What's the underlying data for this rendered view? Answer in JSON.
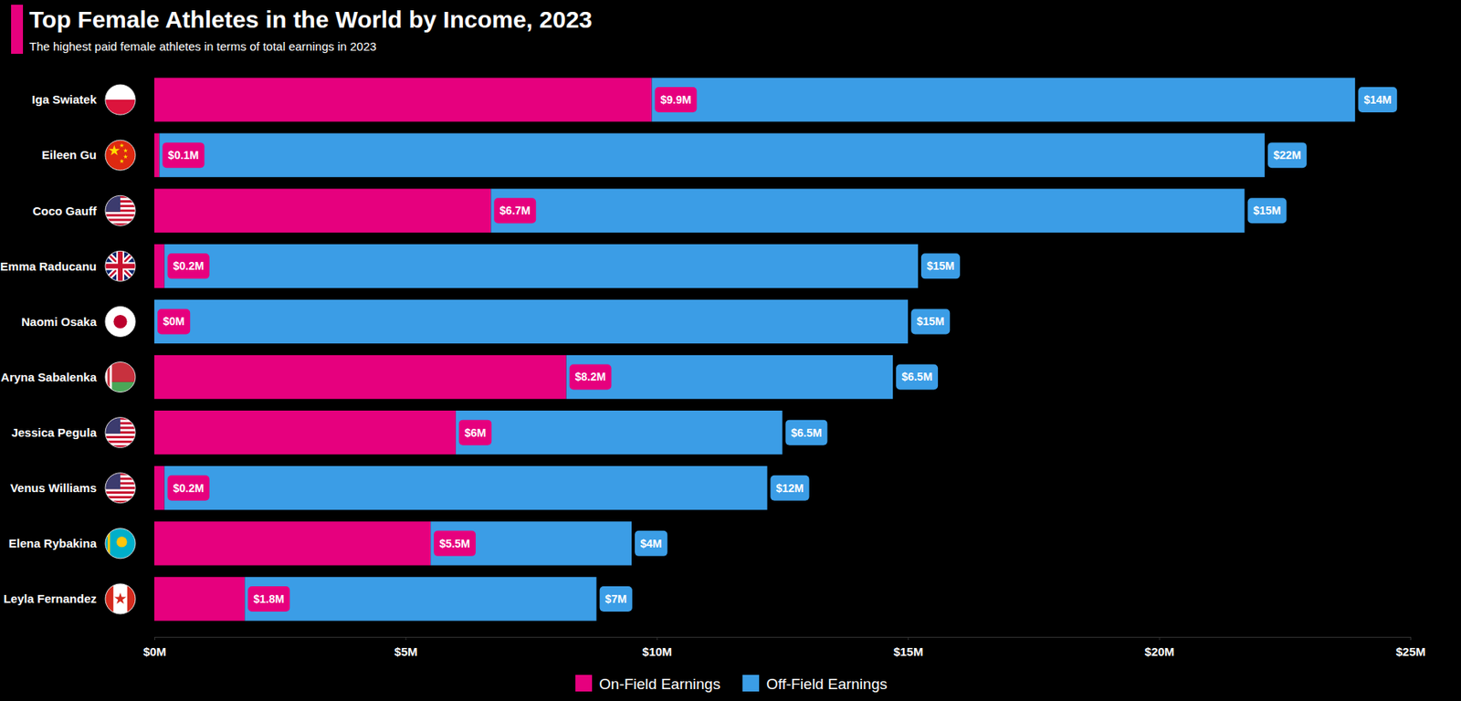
{
  "chart_data": {
    "type": "bar",
    "orientation": "horizontal",
    "stacked": true,
    "data_labels": true,
    "grid": false,
    "legend": "bottom",
    "title": "Top Female Athletes in the World by Income, 2023",
    "subtitle": "The highest paid female athletes in terms of total earnings in 2023",
    "categories": [
      "Iga Swiatek",
      "Eileen Gu",
      "Coco Gauff",
      "Emma Raducanu",
      "Naomi Osaka",
      "Aryna Sabalenka",
      "Jessica Pegula",
      "Venus Williams",
      "Elena Rybakina",
      "Leyla Fernandez"
    ],
    "xlim": [
      0,
      25
    ],
    "xticks": [
      {
        "value": 0,
        "label": "$0M"
      },
      {
        "value": 5,
        "label": "$5M"
      },
      {
        "value": 10,
        "label": "$10M"
      },
      {
        "value": 15,
        "label": "$15M"
      },
      {
        "value": 20,
        "label": "$20M"
      },
      {
        "value": 25,
        "label": "$25M"
      }
    ],
    "series": [
      {
        "name": "On-Field Earnings",
        "color": "#e6007e",
        "values": [
          9.9,
          0.1,
          6.7,
          0.2,
          0,
          8.2,
          6,
          0.2,
          5.5,
          1.8
        ],
        "value_labels": [
          "$9.9M",
          "$0.1M",
          "$6.7M",
          "$0.2M",
          "$0M",
          "$8.2M",
          "$6M",
          "$0.2M",
          "$5.5M",
          "$1.8M"
        ]
      },
      {
        "name": "Off-Field Earnings",
        "color": "#3b9de6",
        "values": [
          14,
          22,
          15,
          15,
          15,
          6.5,
          6.5,
          12,
          4,
          7
        ],
        "value_labels": [
          "$14M",
          "$22M",
          "$15M",
          "$15M",
          "$15M",
          "$6.5M",
          "$6.5M",
          "$12M",
          "$4M",
          "$7M"
        ]
      }
    ]
  }
}
